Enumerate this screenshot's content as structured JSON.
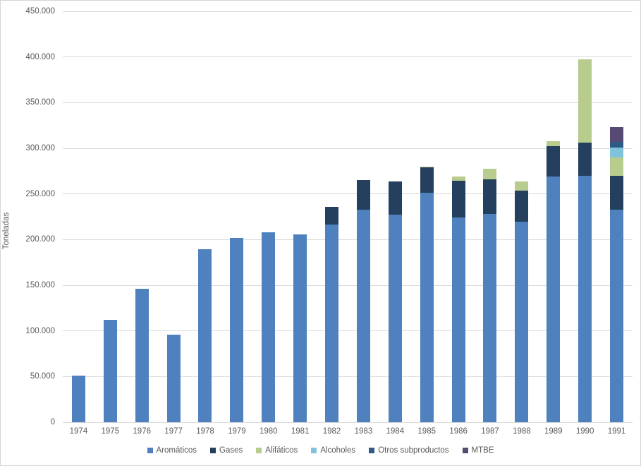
{
  "chart_data": {
    "type": "bar",
    "stacked": true,
    "title": "",
    "xlabel": "",
    "ylabel": "Toneladas",
    "ylim": [
      0,
      450000
    ],
    "grid": true,
    "legend_position": "bottom",
    "yticks": [
      {
        "value": 0,
        "label": "0"
      },
      {
        "value": 50000,
        "label": "50.000"
      },
      {
        "value": 100000,
        "label": "100.000"
      },
      {
        "value": 150000,
        "label": "150.000"
      },
      {
        "value": 200000,
        "label": "200.000"
      },
      {
        "value": 250000,
        "label": "250.000"
      },
      {
        "value": 300000,
        "label": "300.000"
      },
      {
        "value": 350000,
        "label": "350.000"
      },
      {
        "value": 400000,
        "label": "400.000"
      },
      {
        "value": 450000,
        "label": "450.000"
      }
    ],
    "categories": [
      "1974",
      "1975",
      "1976",
      "1977",
      "1978",
      "1979",
      "1980",
      "1981",
      "1982",
      "1983",
      "1984",
      "1985",
      "1986",
      "1987",
      "1988",
      "1989",
      "1990",
      "1991"
    ],
    "series": [
      {
        "name": "Aromáticos",
        "color": "#4e81bd",
        "values": [
          51000,
          112000,
          146000,
          96000,
          189500,
          201500,
          208000,
          205500,
          216500,
          232500,
          227000,
          251500,
          224000,
          228000,
          219500,
          269000,
          270000,
          233000
        ]
      },
      {
        "name": "Gases",
        "color": "#24405e",
        "values": [
          0,
          0,
          0,
          0,
          0,
          0,
          0,
          0,
          19500,
          32500,
          36500,
          27500,
          40500,
          38000,
          34500,
          33500,
          36000,
          37000
        ]
      },
      {
        "name": "Alifáticos",
        "color": "#b8cc8e",
        "values": [
          0,
          0,
          0,
          0,
          0,
          0,
          0,
          0,
          0,
          0,
          0,
          1000,
          4500,
          11500,
          9500,
          5500,
          91500,
          20000
        ]
      },
      {
        "name": "Alcoholes",
        "color": "#81c3db",
        "values": [
          0,
          0,
          0,
          0,
          0,
          0,
          0,
          0,
          0,
          0,
          0,
          0,
          0,
          0,
          0,
          0,
          0,
          11000
        ]
      },
      {
        "name": "Otros subproductos",
        "color": "#2e5a87",
        "values": [
          0,
          0,
          0,
          0,
          0,
          0,
          0,
          0,
          0,
          0,
          0,
          0,
          0,
          0,
          0,
          0,
          0,
          6000
        ]
      },
      {
        "name": "MTBE",
        "color": "#564a73",
        "values": [
          0,
          0,
          0,
          0,
          0,
          0,
          0,
          0,
          0,
          0,
          0,
          0,
          0,
          0,
          0,
          0,
          0,
          16000
        ]
      }
    ]
  },
  "colors": {
    "text": "#595959",
    "gridline": "#d9d9d9",
    "background": "#ffffff",
    "frame_border": "#d5d5d5"
  }
}
